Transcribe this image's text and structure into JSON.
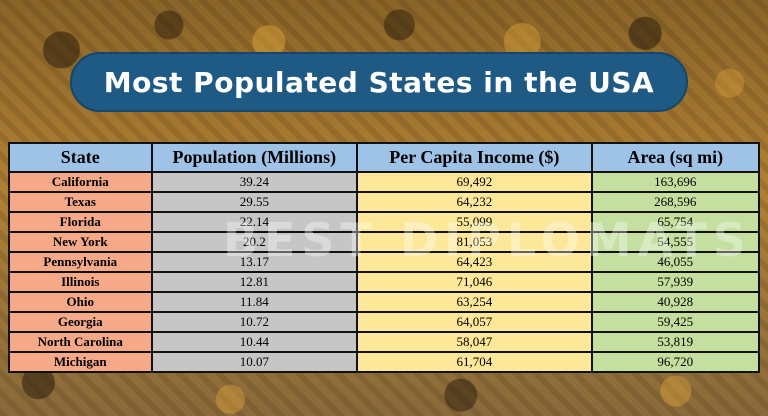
{
  "title": "Most Populated States in the USA",
  "watermark": "BEST DIPLOMATS",
  "table": {
    "headers": [
      "State",
      "Population (Millions)",
      "Per Capita Income ($)",
      "Area (sq mi)"
    ],
    "rows": [
      {
        "state": "California",
        "population": "39.24",
        "income": "69,492",
        "area": "163,696"
      },
      {
        "state": "Texas",
        "population": "29.55",
        "income": "64,232",
        "area": "268,596"
      },
      {
        "state": "Florida",
        "population": "22.14",
        "income": "55,099",
        "area": "65,754"
      },
      {
        "state": "New York",
        "population": "20.2",
        "income": "81,053",
        "area": "54,555"
      },
      {
        "state": "Pennsylvania",
        "population": "13.17",
        "income": "64,423",
        "area": "46,055"
      },
      {
        "state": "Illinois",
        "population": "12.81",
        "income": "71,046",
        "area": "57,939"
      },
      {
        "state": "Ohio",
        "population": "11.84",
        "income": "63,254",
        "area": "40,928"
      },
      {
        "state": "Georgia",
        "population": "10.72",
        "income": "64,057",
        "area": "59,425"
      },
      {
        "state": "North Carolina",
        "population": "10.44",
        "income": "58,047",
        "area": "53,819"
      },
      {
        "state": "Michigan",
        "population": "10.07",
        "income": "61,704",
        "area": "96,720"
      }
    ]
  },
  "colors": {
    "banner": "#1f5a84",
    "header": "#9fc2e7",
    "state_col": "#f6a989",
    "population_col": "#c6c6c6",
    "income_col": "#fde89a",
    "area_col": "#c4dfa0"
  }
}
